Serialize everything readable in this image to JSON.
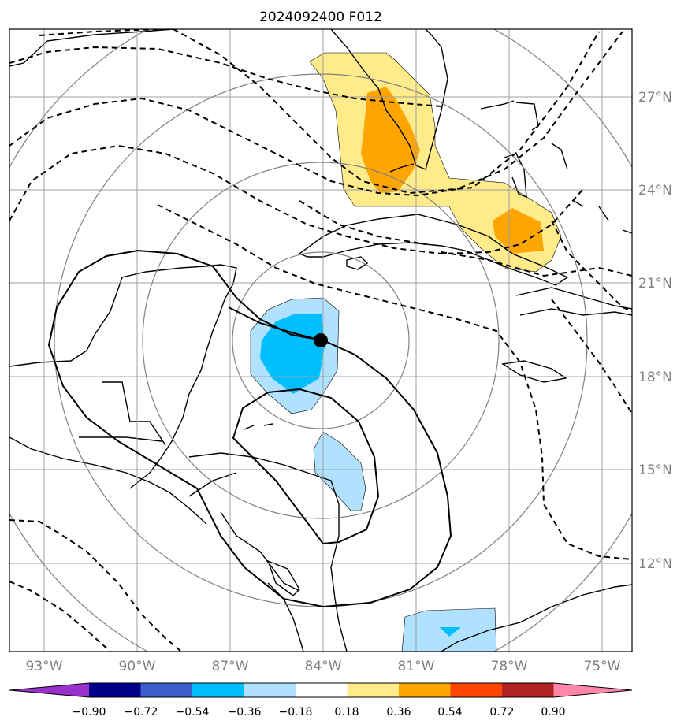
{
  "title": "2024092400 F012",
  "lon_labels": [
    "93°W",
    "90°W",
    "87°W",
    "84°W",
    "81°W",
    "78°W",
    "75°W"
  ],
  "lat_labels": [
    "27°N",
    "24°N",
    "21°N",
    "18°N",
    "15°N",
    "12°N"
  ],
  "colorbar": {
    "tick_labels": [
      "−0.90",
      "−0.72",
      "−0.54",
      "−0.36",
      "−0.18",
      "0.18",
      "0.36",
      "0.54",
      "0.72",
      "0.90"
    ],
    "colors": [
      "#9932cc",
      "#00008b",
      "#3a5fcd",
      "#00bfff",
      "#b0e2ff",
      "#ffffff",
      "#ffeb8a",
      "#ffa500",
      "#ff4500",
      "#b22222",
      "#ff88aa"
    ]
  },
  "storm_center_marker": "black-dot",
  "colors": {
    "land_outline": "#000000",
    "grid": "#a0a0a0",
    "range_rings": "#808080",
    "contours": "#000000"
  }
}
